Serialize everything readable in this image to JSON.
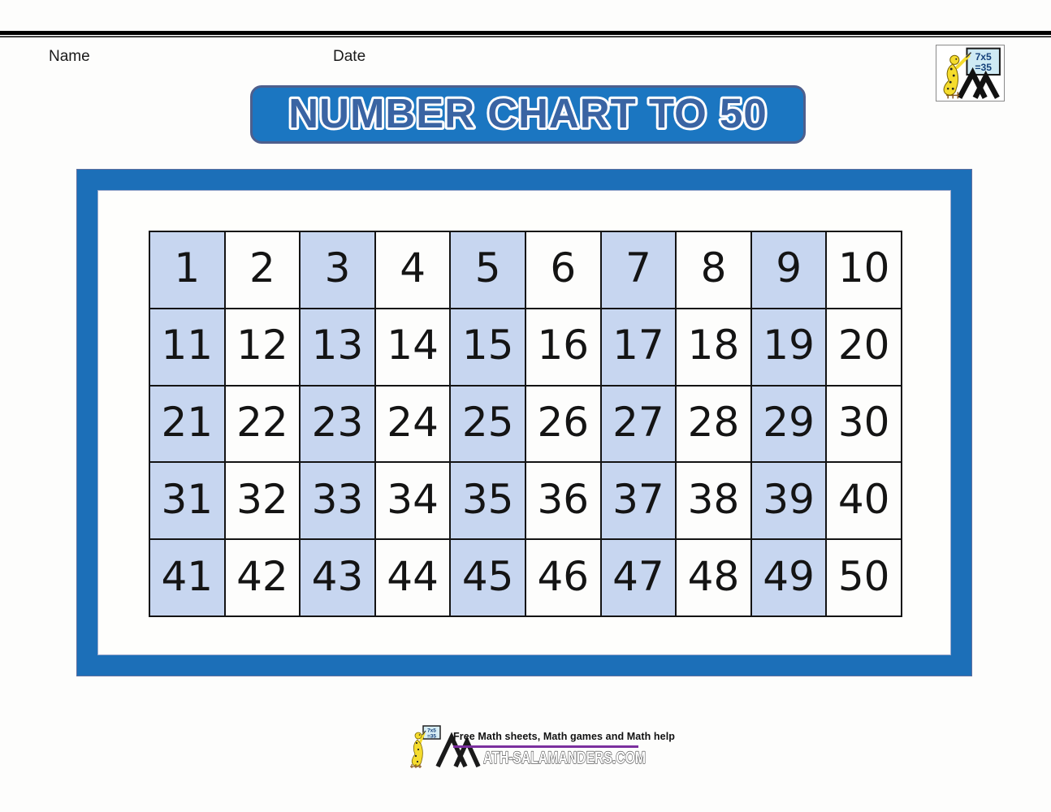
{
  "header": {
    "name_label": "Name",
    "date_label": "Date"
  },
  "banner": {
    "title": "NUMBER CHART TO 50"
  },
  "logo": {
    "equation_line1": "7x5",
    "equation_line2": "=35"
  },
  "grid": {
    "rows": 5,
    "columns": 10,
    "numbers": [
      1,
      2,
      3,
      4,
      5,
      6,
      7,
      8,
      9,
      10,
      11,
      12,
      13,
      14,
      15,
      16,
      17,
      18,
      19,
      20,
      21,
      22,
      23,
      24,
      25,
      26,
      27,
      28,
      29,
      30,
      31,
      32,
      33,
      34,
      35,
      36,
      37,
      38,
      39,
      40,
      41,
      42,
      43,
      44,
      45,
      46,
      47,
      48,
      49,
      50
    ]
  },
  "footer": {
    "tagline": "Free Math sheets, Math games and Math help",
    "brand_text": "ATH-SALAMANDERS.COM"
  },
  "colors": {
    "banner_blue": "#1B76C1",
    "box_border_blue": "#1C6FB8",
    "cell_blue": "#C7D6F0",
    "cell_white": "#FDFDFC",
    "title_text_blue": "#3A64A3",
    "footer_rule_purple": "#7B2F9E"
  }
}
